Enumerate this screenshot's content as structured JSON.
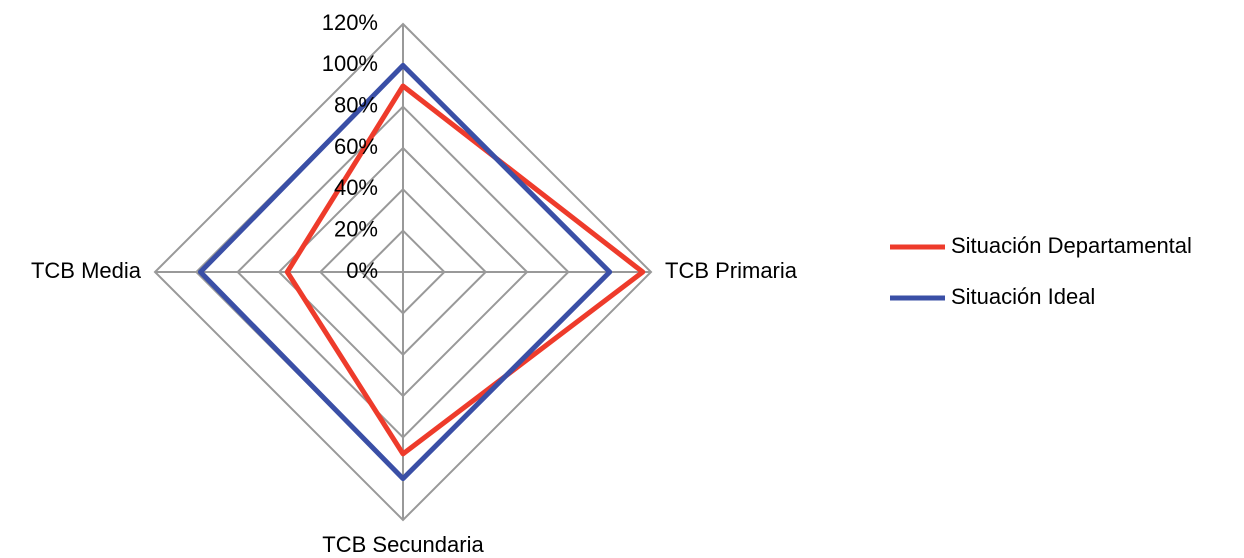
{
  "chart_data": {
    "type": "radar",
    "categories": [
      null,
      "TCB Primaria",
      "TCB Secundaria",
      "TCB Media"
    ],
    "series": [
      {
        "name": "Situación Departamental",
        "color": "#ee3b2b",
        "values": [
          90,
          116,
          88,
          56
        ]
      },
      {
        "name": "Situación Ideal",
        "color": "#3a4fa6",
        "values": [
          100,
          100,
          100,
          98
        ]
      }
    ],
    "ylim": [
      0,
      120
    ],
    "yticks": [
      {
        "value": 0,
        "label": "0%"
      },
      {
        "value": 20,
        "label": "20%"
      },
      {
        "value": 40,
        "label": "40%"
      },
      {
        "value": 60,
        "label": "60%"
      },
      {
        "value": 80,
        "label": "80%"
      },
      {
        "value": 100,
        "label": "100%"
      },
      {
        "value": 120,
        "label": "120%"
      }
    ],
    "grid": true,
    "legend": "right"
  }
}
